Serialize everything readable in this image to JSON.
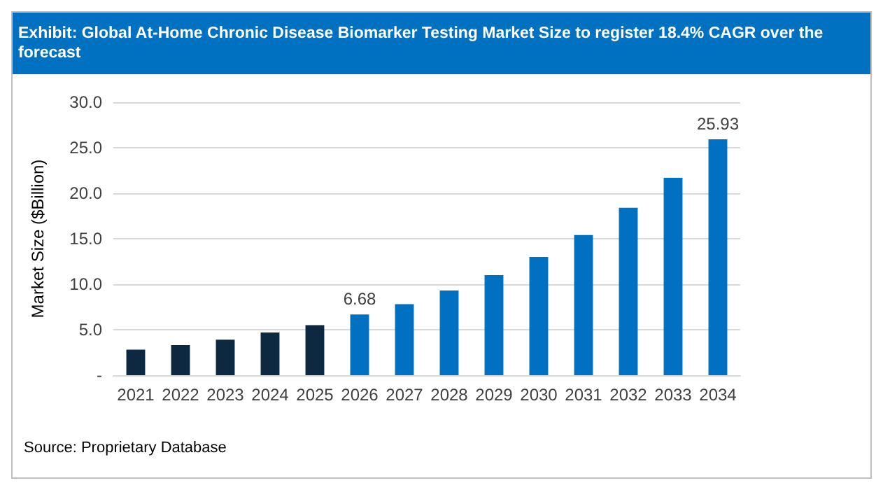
{
  "chart_data": {
    "type": "bar",
    "title": "Exhibit: Global At-Home Chronic Disease Biomarker Testing Market Size to register 18.4% CAGR over the forecast",
    "ylabel": "Market Size ($Billion)",
    "categories": [
      "2021",
      "2022",
      "2023",
      "2024",
      "2025",
      "2026",
      "2027",
      "2028",
      "2029",
      "2030",
      "2031",
      "2032",
      "2033",
      "2034"
    ],
    "values": [
      2.8,
      3.3,
      3.9,
      4.7,
      5.5,
      6.68,
      7.8,
      9.3,
      11.0,
      13.0,
      15.4,
      18.4,
      21.7,
      25.93
    ],
    "colors": [
      "#0d2841",
      "#0d2841",
      "#0d2841",
      "#0d2841",
      "#0d2841",
      "#0070c0",
      "#0070c0",
      "#0070c0",
      "#0070c0",
      "#0070c0",
      "#0070c0",
      "#0070c0",
      "#0070c0",
      "#0070c0"
    ],
    "value_labels": [
      null,
      null,
      null,
      null,
      null,
      "6.68",
      null,
      null,
      null,
      null,
      null,
      null,
      null,
      "25.93"
    ],
    "ylim": [
      0,
      30
    ],
    "yticks": [
      {
        "value": 0,
        "label": "-"
      },
      {
        "value": 5,
        "label": "5.0"
      },
      {
        "value": 10,
        "label": "10.0"
      },
      {
        "value": 15,
        "label": "15.0"
      },
      {
        "value": 20,
        "label": "20.0"
      },
      {
        "value": 25,
        "label": "25.0"
      },
      {
        "value": 30,
        "label": "30.0"
      }
    ],
    "grid": "y",
    "annotations": [
      "Source: Proprietary Database"
    ]
  }
}
